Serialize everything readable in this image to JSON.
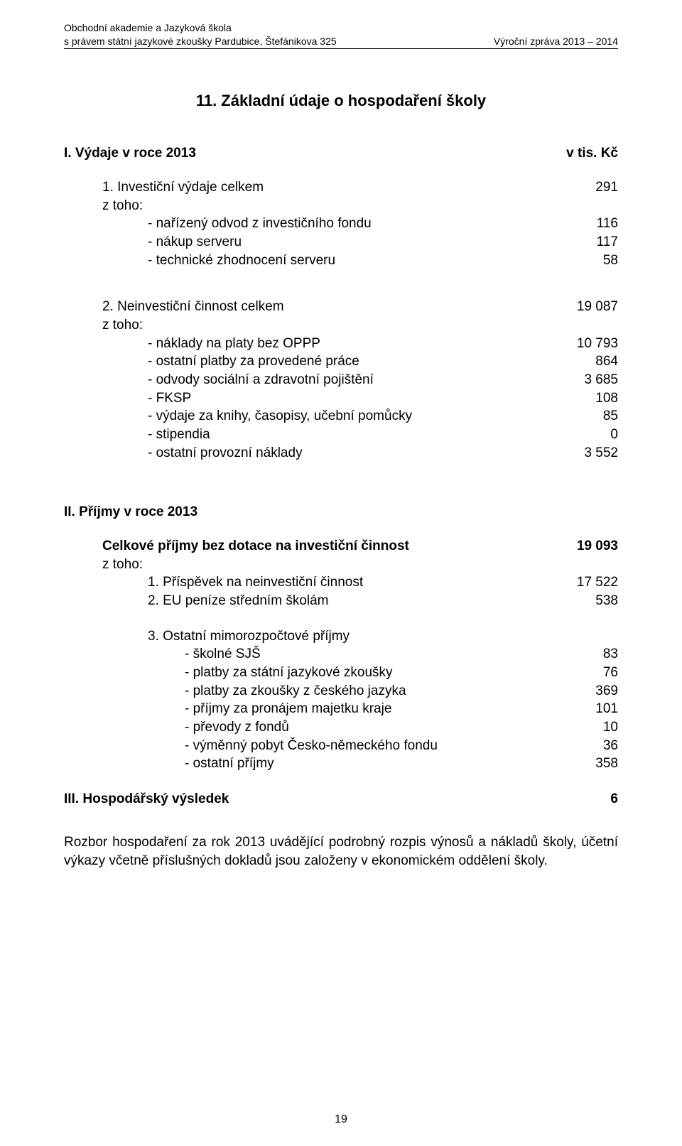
{
  "header": {
    "line1": "Obchodní akademie a Jazyková škola",
    "line2_left": "s právem státní jazykové zkoušky Pardubice, Štefánikova 325",
    "line2_right": "Výroční zpráva 2013 – 2014"
  },
  "section_title": "11.       Základní údaje o hospodaření školy",
  "part1": {
    "heading_left": "I. Výdaje v roce 2013",
    "heading_right": "v tis. Kč",
    "group1": {
      "title": "1. Investiční výdaje celkem",
      "value": "291",
      "ztoho": "z toho:",
      "rows": [
        {
          "label": "- nařízený odvod z investičního fondu",
          "value": "116"
        },
        {
          "label": "- nákup serveru",
          "value": "117"
        },
        {
          "label": "- technické zhodnocení serveru",
          "value": "58"
        }
      ]
    },
    "group2": {
      "title": "2. Neinvestiční činnost celkem",
      "value": "19 087",
      "ztoho": "z toho:",
      "rows": [
        {
          "label": "- náklady na platy bez OPPP",
          "value": "10 793"
        },
        {
          "label": "- ostatní platby za provedené práce",
          "value": "864"
        },
        {
          "label": "- odvody sociální a zdravotní pojištění",
          "value": "3 685"
        },
        {
          "label": "- FKSP",
          "value": "108"
        },
        {
          "label": "- výdaje za knihy, časopisy, učební pomůcky",
          "value": "85"
        },
        {
          "label": "- stipendia",
          "value": "0"
        },
        {
          "label": "- ostatní provozní náklady",
          "value": "3 552"
        }
      ]
    }
  },
  "part2": {
    "heading": "II. Příjmy v roce 2013",
    "total_label": "Celkové příjmy bez dotace na investiční činnost",
    "total_value": "19 093",
    "ztoho": "z toho:",
    "rows1": [
      {
        "label": "1. Příspěvek na neinvestiční činnost",
        "value": "17 522"
      },
      {
        "label": "2. EU peníze středním školám",
        "value": "538"
      }
    ],
    "group3_label": "3. Ostatní mimorozpočtové příjmy",
    "rows2": [
      {
        "label": "- školné SJŠ",
        "value": "83"
      },
      {
        "label": "- platby za státní jazykové zkoušky",
        "value": "76"
      },
      {
        "label": "- platby za zkoušky z českého jazyka",
        "value": "369"
      },
      {
        "label": "- příjmy za pronájem majetku kraje",
        "value": "101"
      },
      {
        "label": "- převody z fondů",
        "value": "10"
      },
      {
        "label": "- výměnný pobyt Česko-německého fondu",
        "value": "36"
      },
      {
        "label": "- ostatní příjmy",
        "value": "358"
      }
    ]
  },
  "part3": {
    "label": "III. Hospodářský výsledek",
    "value": "6"
  },
  "footnote": "Rozbor hospodaření za rok 2013 uvádějící podrobný rozpis výnosů a nákladů školy, účetní výkazy včetně příslušných dokladů jsou založeny v ekonomickém oddělení školy.",
  "page_number": "19"
}
